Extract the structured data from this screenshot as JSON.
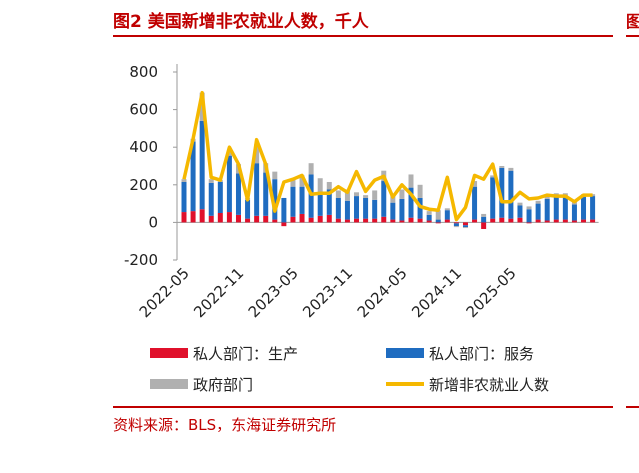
{
  "title": "图2  美国新增非农就业人数，千人",
  "edge_title_char": "图",
  "source": "资料来源：BLS，东海证券研究所",
  "chart_data": {
    "type": "bar+line",
    "stacked": true,
    "ylim": [
      -200,
      800
    ],
    "yticks": [
      -200,
      0,
      200,
      400,
      600,
      800
    ],
    "xtick_labels": [
      "2022-05",
      "2022-11",
      "2023-05",
      "2023-11",
      "2024-05",
      "2024-11",
      "2025-05"
    ],
    "xtick_index": [
      0,
      6,
      12,
      18,
      24,
      30,
      36
    ],
    "colors": {
      "goods": "#e0102b",
      "services": "#1f6cc0",
      "government": "#b0b0b0",
      "total": "#f5b800"
    },
    "series": [
      {
        "name": "私人部门：生产",
        "kind": "bar",
        "values": [
          55,
          60,
          70,
          35,
          50,
          55,
          40,
          20,
          35,
          35,
          15,
          -20,
          30,
          45,
          25,
          35,
          40,
          20,
          15,
          20,
          20,
          20,
          30,
          15,
          10,
          25,
          20,
          10,
          -5,
          15,
          -5,
          -15,
          15,
          -35,
          20,
          25,
          20,
          25,
          -5,
          15,
          10,
          15,
          15,
          10,
          15,
          15
        ]
      },
      {
        "name": "私人部门：服务",
        "kind": "bar",
        "values": [
          160,
          370,
          470,
          175,
          165,
          300,
          220,
          100,
          280,
          230,
          215,
          130,
          160,
          145,
          230,
          125,
          135,
          110,
          100,
          120,
          110,
          100,
          190,
          90,
          115,
          160,
          110,
          30,
          15,
          50,
          -15,
          -10,
          175,
          30,
          220,
          265,
          255,
          65,
          70,
          85,
          115,
          120,
          120,
          85,
          120,
          125
        ]
      },
      {
        "name": "政府部门",
        "kind": "bar",
        "values": [
          15,
          15,
          150,
          20,
          10,
          20,
          50,
          10,
          100,
          50,
          40,
          0,
          40,
          60,
          60,
          75,
          40,
          40,
          60,
          20,
          15,
          50,
          55,
          45,
          50,
          70,
          70,
          20,
          50,
          10,
          -5,
          -5,
          30,
          15,
          10,
          10,
          15,
          15,
          15,
          15,
          20,
          20,
          20,
          15,
          15,
          10
        ]
      },
      {
        "name": "新增非农就业人数",
        "kind": "line",
        "values": [
          230,
          445,
          690,
          240,
          225,
          400,
          310,
          120,
          440,
          310,
          60,
          215,
          230,
          250,
          150,
          155,
          155,
          190,
          160,
          270,
          165,
          225,
          245,
          135,
          200,
          150,
          85,
          70,
          65,
          240,
          15,
          80,
          250,
          230,
          310,
          110,
          110,
          160,
          125,
          130,
          145,
          140,
          140,
          110,
          145,
          145
        ]
      }
    ],
    "legend": [
      "私人部门：生产",
      "私人部门：服务",
      "政府部门",
      "新增非农就业人数"
    ],
    "legend_position": "bottom"
  }
}
